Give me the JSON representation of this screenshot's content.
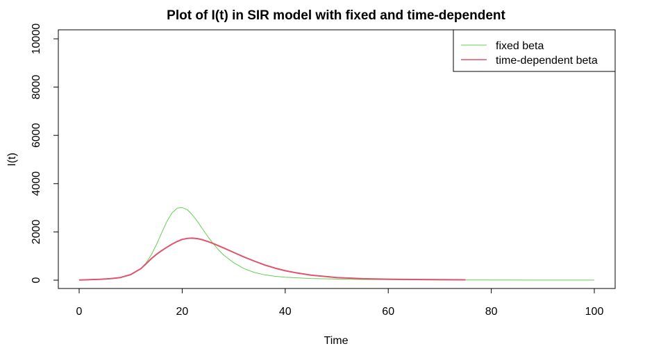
{
  "chart_data": {
    "type": "line",
    "title": "Plot of I(t) in SIR model with fixed and time-dependent",
    "xlabel": "Time",
    "ylabel": "I(t)",
    "xlim": [
      0,
      100
    ],
    "ylim": [
      0,
      10000
    ],
    "x_ticks": [
      0,
      20,
      40,
      60,
      80,
      100
    ],
    "y_ticks": [
      0,
      2000,
      4000,
      6000,
      8000,
      10000
    ],
    "grid": false,
    "legend_position": "top-right",
    "series": [
      {
        "name": "fixed beta",
        "color": "#61D04F",
        "x": [
          0,
          2,
          4,
          6,
          8,
          10,
          12,
          13,
          14,
          15,
          16,
          17,
          18,
          19,
          20,
          21,
          22,
          23,
          24,
          25,
          26,
          27,
          28,
          30,
          32,
          34,
          36,
          38,
          40,
          45,
          50,
          55,
          60,
          70,
          80,
          90,
          100
        ],
        "y": [
          10,
          20,
          35,
          60,
          110,
          230,
          480,
          720,
          1050,
          1470,
          1950,
          2420,
          2780,
          2980,
          3010,
          2920,
          2700,
          2420,
          2110,
          1800,
          1520,
          1270,
          1050,
          720,
          480,
          320,
          220,
          160,
          120,
          70,
          45,
          30,
          20,
          10,
          5,
          3,
          2
        ]
      },
      {
        "name": "time-dependent beta",
        "color": "#DF536B",
        "x": [
          0,
          2,
          4,
          6,
          8,
          10,
          12,
          13,
          14,
          15,
          16,
          17,
          18,
          19,
          20,
          21,
          22,
          23,
          24,
          25,
          26,
          28,
          30,
          32,
          34,
          36,
          38,
          40,
          42,
          45,
          50,
          55,
          60,
          65,
          70,
          75
        ],
        "y": [
          10,
          20,
          35,
          60,
          110,
          230,
          480,
          680,
          890,
          1070,
          1220,
          1360,
          1490,
          1600,
          1690,
          1730,
          1740,
          1720,
          1670,
          1600,
          1520,
          1340,
          1150,
          960,
          790,
          630,
          500,
          390,
          310,
          210,
          110,
          60,
          40,
          30,
          20,
          15
        ]
      }
    ]
  }
}
